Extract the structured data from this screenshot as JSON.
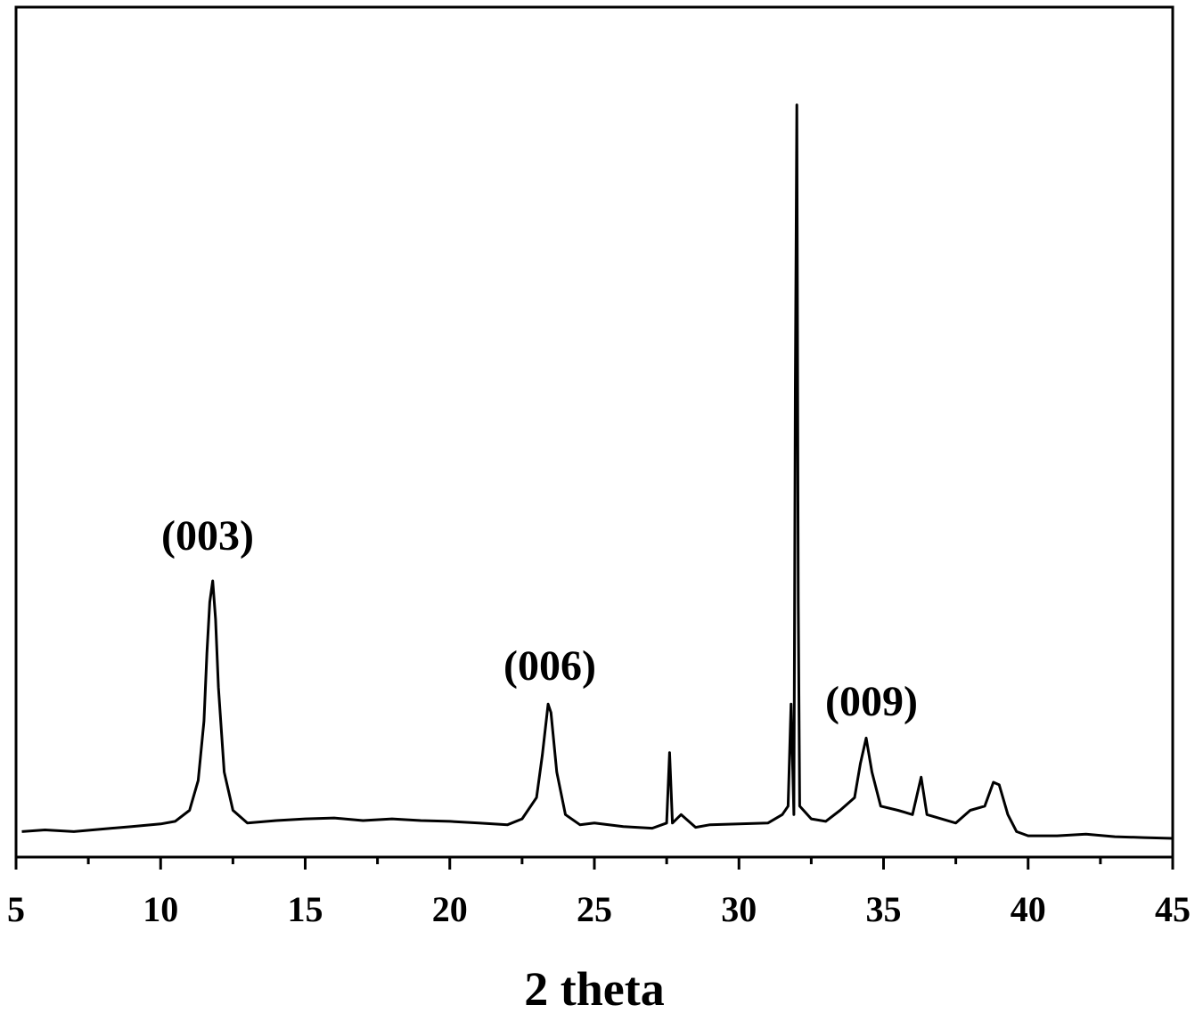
{
  "chart_data": {
    "type": "line",
    "xlabel": "2 theta",
    "xlim": [
      5,
      45
    ],
    "xticks": [
      5,
      10,
      15,
      20,
      25,
      30,
      35,
      40,
      45
    ],
    "ylim": [
      0,
      100
    ],
    "annotations": [
      "(003)",
      "(006)",
      "(009)"
    ],
    "series": [
      {
        "color": "#000000",
        "x": [
          5.2,
          6,
          7,
          8,
          9,
          10,
          10.5,
          11,
          11.3,
          11.5,
          11.6,
          11.7,
          11.8,
          11.9,
          12.0,
          12.2,
          12.5,
          13,
          14,
          15,
          16,
          17,
          18,
          19,
          20,
          21,
          22,
          22.5,
          23,
          23.2,
          23.4,
          23.5,
          23.7,
          24,
          24.5,
          25,
          26,
          27,
          27.5,
          27.6,
          27.7,
          28,
          28.5,
          29,
          30,
          31,
          31.5,
          31.7,
          31.8,
          31.9,
          31.95,
          32.0,
          32.05,
          32.1,
          32.5,
          33,
          33.5,
          34,
          34.2,
          34.4,
          34.6,
          34.9,
          35.5,
          36,
          36.3,
          36.5,
          37,
          37.5,
          38,
          38.5,
          38.8,
          39,
          39.3,
          39.6,
          40,
          41,
          42,
          43,
          44,
          45
        ],
        "values": [
          3.0,
          3.2,
          3.0,
          3.3,
          3.6,
          3.9,
          4.2,
          5.5,
          9,
          16,
          24,
          30,
          32.5,
          28,
          20,
          10,
          5.5,
          4.0,
          4.3,
          4.5,
          4.6,
          4.3,
          4.5,
          4.3,
          4.2,
          4.0,
          3.8,
          4.5,
          7,
          12,
          18,
          17,
          10,
          5,
          3.8,
          4.0,
          3.6,
          3.4,
          4,
          12.3,
          4,
          5,
          3.5,
          3.8,
          3.9,
          4.0,
          5,
          6,
          18,
          5,
          55,
          88.5,
          30,
          6,
          4.5,
          4.2,
          5.5,
          7,
          11,
          14,
          10,
          6,
          5.5,
          5.0,
          9.4,
          5,
          4.5,
          4.0,
          5.5,
          6,
          8.8,
          8.5,
          5,
          3,
          2.5,
          2.5,
          2.7,
          2.4,
          2.3,
          2.2
        ]
      }
    ]
  }
}
